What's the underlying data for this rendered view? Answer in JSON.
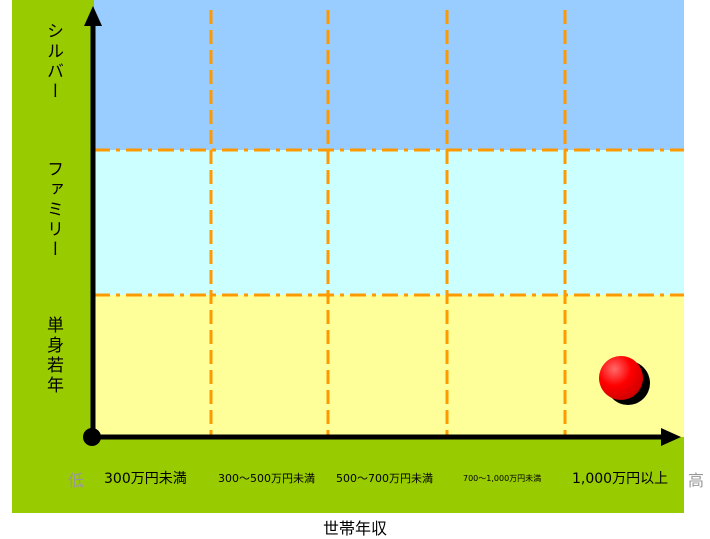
{
  "y_axis": {
    "segments": [
      "シルバー",
      "ファミリー",
      "単身若年"
    ]
  },
  "x_axis": {
    "low": "低",
    "high": "高",
    "categories": [
      "300万円未満",
      "300～500万円未満",
      "500～700万円未満",
      "700～1,000万円未満",
      "1,000万円以上"
    ],
    "title": "世帯年収"
  },
  "marker": {
    "segment": "単身若年",
    "income_band": "1,000万円以上",
    "color": "#ff0000"
  },
  "colors": {
    "frame": "#99cc00",
    "band_silver": "#99ccff",
    "band_family": "#ccffff",
    "band_single": "#ffff99",
    "grid": "#ff9900"
  }
}
